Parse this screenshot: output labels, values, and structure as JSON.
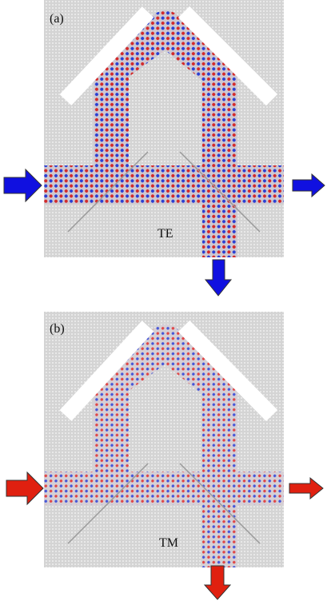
{
  "panels": [
    {
      "label": "(a)",
      "mode": "TE"
    },
    {
      "label": "(b)",
      "mode": "TM"
    }
  ]
}
